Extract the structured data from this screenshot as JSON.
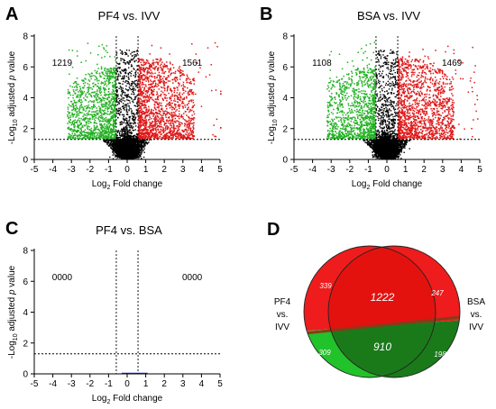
{
  "panels": [
    {
      "letter": "A",
      "chart_data": {
        "type": "scatter",
        "title": "PF4 vs. IVV",
        "xlabel_prefix": "Log",
        "xlabel_sub": "2",
        "xlabel_suffix": " Fold change",
        "ylabel_prefix": "-Log",
        "ylabel_sub": "10",
        "ylabel_mid": " adjusted ",
        "ylabel_italic": "p",
        "ylabel_suffix": " value",
        "xlim": [
          -5,
          5
        ],
        "ylim": [
          0,
          8
        ],
        "xticks": [
          "-5",
          "-4",
          "-3",
          "-2",
          "-1",
          "0",
          "1",
          "2",
          "3",
          "4",
          "5"
        ],
        "yticks": [
          "0",
          "2",
          "4",
          "6",
          "8"
        ],
        "fc_threshold": [
          -0.585,
          0.585
        ],
        "p_threshold": 1.3,
        "down_count": "1219",
        "up_count": "1561",
        "colors": {
          "down": "#22b022",
          "up": "#e01818",
          "ns": "#000000"
        },
        "max_abs_fc": 4.8,
        "max_p": 7.6,
        "has_points": true
      }
    },
    {
      "letter": "B",
      "chart_data": {
        "type": "scatter",
        "title": "BSA vs. IVV",
        "xlabel_prefix": "Log",
        "xlabel_sub": "2",
        "xlabel_suffix": " Fold change",
        "ylabel_prefix": "-Log",
        "ylabel_sub": "10",
        "ylabel_mid": " adjusted ",
        "ylabel_italic": "p",
        "ylabel_suffix": " value",
        "xlim": [
          -5,
          5
        ],
        "ylim": [
          0,
          8
        ],
        "xticks": [
          "-5",
          "-4",
          "-3",
          "-2",
          "-1",
          "0",
          "1",
          "2",
          "3",
          "4",
          "5"
        ],
        "yticks": [
          "0",
          "2",
          "4",
          "6",
          "8"
        ],
        "fc_threshold": [
          -0.585,
          0.585
        ],
        "p_threshold": 1.3,
        "down_count": "1108",
        "up_count": "1469",
        "colors": {
          "down": "#22b022",
          "up": "#e01818",
          "ns": "#000000"
        },
        "max_abs_fc": 4.6,
        "max_p": 7.4,
        "has_points": true
      }
    },
    {
      "letter": "C",
      "chart_data": {
        "type": "scatter",
        "title": "PF4 vs. BSA",
        "xlabel_prefix": "Log",
        "xlabel_sub": "2",
        "xlabel_suffix": " Fold change",
        "ylabel_prefix": "-Log",
        "ylabel_sub": "10",
        "ylabel_mid": " adjusted ",
        "ylabel_italic": "p",
        "ylabel_suffix": " value",
        "xlim": [
          -5,
          5
        ],
        "ylim": [
          0,
          8
        ],
        "xticks": [
          "-5",
          "-4",
          "-3",
          "-2",
          "-1",
          "0",
          "1",
          "2",
          "3",
          "4",
          "5"
        ],
        "yticks": [
          "0",
          "2",
          "4",
          "6",
          "8"
        ],
        "fc_threshold": [
          -0.585,
          0.585
        ],
        "p_threshold": 1.3,
        "down_count": "0000",
        "up_count": "0000",
        "colors": {
          "down": "#22b022",
          "up": "#e01818",
          "ns": "#2030d0"
        },
        "baseline_points_x": [
          -0.3,
          1.1
        ],
        "has_points": false
      }
    }
  ],
  "venn": {
    "letter": "D",
    "left_label": [
      "PF4",
      "vs.",
      "IVV"
    ],
    "right_label": [
      "BSA",
      "vs.",
      "IVV"
    ],
    "regions": {
      "up_left_only": "339",
      "up_shared": "1222",
      "up_right_only": "247",
      "down_left_only": "309",
      "down_shared": "910",
      "down_right_only": "198"
    },
    "colors": {
      "up": "#ee1c1c",
      "up_shared": "#e3120f",
      "down": "#22c22a",
      "down_shared": "#1a7a1a",
      "split": "#8a3a1a"
    }
  }
}
